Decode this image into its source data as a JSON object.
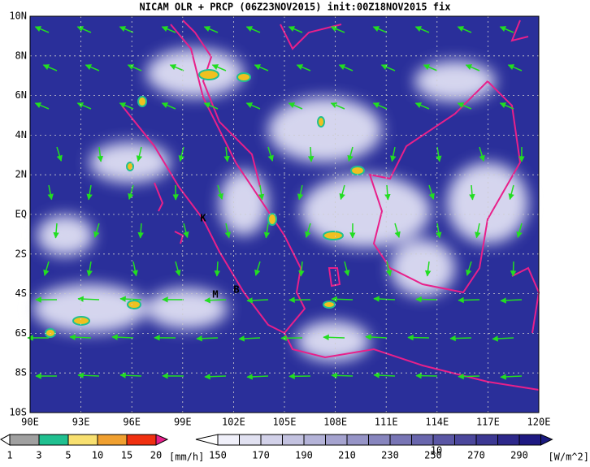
{
  "header": {
    "title": "NICAM OLR + PRCP (06Z23NOV2015) init:00Z18NOV2015 fix"
  },
  "map": {
    "lat_labels": [
      "10N",
      "8N",
      "6N",
      "4N",
      "2N",
      "EQ",
      "2S",
      "4S",
      "6S",
      "8S",
      "10S"
    ],
    "lon_labels": [
      "90E",
      "93E",
      "96E",
      "99E",
      "102E",
      "105E",
      "108E",
      "111E",
      "114E",
      "117E",
      "120E"
    ],
    "stations": [
      "K",
      "M",
      "B"
    ]
  },
  "legend_precip": {
    "labels": [
      "1",
      "3",
      "5",
      "10",
      "15",
      "20"
    ],
    "unit": "[mm/h]"
  },
  "legend_olr": {
    "labels": [
      "150",
      "170",
      "190",
      "210",
      "230",
      "250",
      "270",
      "290"
    ],
    "unit": "[W/m^2]"
  },
  "vector_ref": "10"
}
